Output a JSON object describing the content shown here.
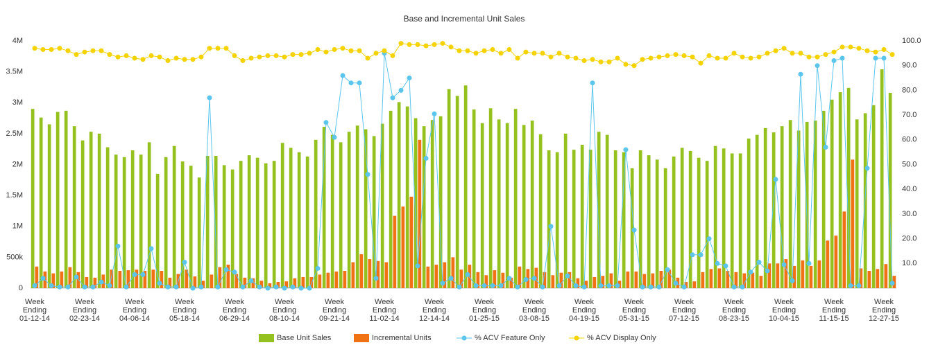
{
  "chart_data": {
    "type": "bar",
    "title": "Base and Incremental Unit Sales",
    "categories": [
      "Week Ending 01-12-14",
      null,
      null,
      null,
      null,
      null,
      "Week Ending 02-23-14",
      null,
      null,
      null,
      null,
      null,
      "Week Ending 04-06-14",
      null,
      null,
      null,
      null,
      null,
      "Week Ending 05-18-14",
      null,
      null,
      null,
      null,
      null,
      "Week Ending 06-29-14",
      null,
      null,
      null,
      null,
      null,
      "Week Ending 08-10-14",
      null,
      null,
      null,
      null,
      null,
      "Week Ending 09-21-14",
      null,
      null,
      null,
      null,
      null,
      "Week Ending 11-02-14",
      null,
      null,
      null,
      null,
      null,
      "Week Ending 12-14-14",
      null,
      null,
      null,
      null,
      null,
      "Week Ending 01-25-15",
      null,
      null,
      null,
      null,
      null,
      "Week Ending 03-08-15",
      null,
      null,
      null,
      null,
      null,
      "Week Ending 04-19-15",
      null,
      null,
      null,
      null,
      null,
      "Week Ending 05-31-15",
      null,
      null,
      null,
      null,
      null,
      "Week Ending 07-12-15",
      null,
      null,
      null,
      null,
      null,
      "Week Ending 08-23-15",
      null,
      null,
      null,
      null,
      null,
      "Week Ending 10-04-15",
      null,
      null,
      null,
      null,
      null,
      "Week Ending 11-15-15",
      null,
      null,
      null,
      null,
      null,
      "Week Ending 12-27-15",
      null
    ],
    "series": [
      {
        "name": "Base Unit Sales",
        "type": "bar",
        "color": "#95c11f",
        "values": [
          2900000,
          2760000,
          2650000,
          2850000,
          2870000,
          2620000,
          2390000,
          2530000,
          2500000,
          2280000,
          2160000,
          2120000,
          2230000,
          2160000,
          2360000,
          1850000,
          2120000,
          2300000,
          2050000,
          1980000,
          1790000,
          2140000,
          2140000,
          1990000,
          1920000,
          2060000,
          2150000,
          2110000,
          2020000,
          2060000,
          2350000,
          2270000,
          2200000,
          2130000,
          2400000,
          2610000,
          2480000,
          2360000,
          2530000,
          2630000,
          2570000,
          2460000,
          2660000,
          2870000,
          3010000,
          2940000,
          2750000,
          2620000,
          2720000,
          2780000,
          3220000,
          3110000,
          3280000,
          2890000,
          2670000,
          2910000,
          2730000,
          2670000,
          2900000,
          2640000,
          2710000,
          2490000,
          2230000,
          2200000,
          2500000,
          2240000,
          2320000,
          2240000,
          2530000,
          2480000,
          2230000,
          2200000,
          1940000,
          2230000,
          2150000,
          2080000,
          1940000,
          2130000,
          2270000,
          2220000,
          2110000,
          2060000,
          2300000,
          2260000,
          2180000,
          2180000,
          2420000,
          2480000,
          2590000,
          2520000,
          2620000,
          2720000,
          2550000,
          2690000,
          2710000,
          2870000,
          3050000,
          3170000,
          3240000,
          2730000,
          2830000,
          2960000,
          3540000,
          3160000
        ]
      },
      {
        "name": "Incremental Units",
        "type": "bar",
        "color": "#f07214",
        "values": [
          350000,
          270000,
          240000,
          270000,
          340000,
          260000,
          180000,
          170000,
          220000,
          300000,
          280000,
          290000,
          300000,
          280000,
          300000,
          280000,
          170000,
          230000,
          300000,
          190000,
          120000,
          220000,
          340000,
          380000,
          230000,
          170000,
          160000,
          120000,
          80000,
          100000,
          110000,
          160000,
          180000,
          180000,
          220000,
          250000,
          270000,
          280000,
          420000,
          550000,
          470000,
          440000,
          420000,
          1170000,
          1320000,
          1480000,
          2400000,
          350000,
          380000,
          420000,
          500000,
          300000,
          380000,
          260000,
          210000,
          290000,
          250000,
          170000,
          350000,
          310000,
          330000,
          260000,
          210000,
          250000,
          260000,
          160000,
          120000,
          180000,
          200000,
          240000,
          120000,
          270000,
          270000,
          230000,
          240000,
          280000,
          300000,
          170000,
          100000,
          110000,
          260000,
          310000,
          320000,
          280000,
          260000,
          240000,
          250000,
          200000,
          400000,
          400000,
          470000,
          360000,
          450000,
          360000,
          450000,
          770000,
          850000,
          1240000,
          2080000,
          320000,
          280000,
          310000,
          390000,
          200000
        ]
      },
      {
        "name": "% ACV Feature Only",
        "type": "line",
        "axis": "y2",
        "color": "#5bc5ec",
        "values": [
          1,
          4,
          1,
          0.5,
          0.5,
          4.5,
          0.5,
          0.5,
          2.5,
          1,
          17,
          0.5,
          5.5,
          5.5,
          16,
          2,
          0.5,
          0.5,
          10.5,
          0,
          0.5,
          77,
          0.5,
          7.5,
          6.5,
          0.5,
          3,
          0.5,
          0,
          0.5,
          0,
          0.5,
          0,
          0,
          8,
          67,
          61,
          86,
          83,
          83,
          46,
          4,
          95,
          77,
          80,
          85,
          9,
          52.5,
          70.5,
          2,
          4,
          0.5,
          5.5,
          1,
          1,
          1,
          1,
          4,
          0.5,
          3.5,
          4,
          0.5,
          25,
          1,
          5,
          1,
          0.5,
          83,
          1,
          1,
          1,
          56,
          23.5,
          0.5,
          0.5,
          0.5,
          7.5,
          2,
          0.5,
          13.5,
          13.5,
          20,
          10,
          9,
          0.5,
          0.5,
          6.5,
          10.5,
          7,
          44,
          9.5,
          3,
          86.5,
          10,
          90,
          57,
          92,
          93,
          1,
          1,
          48.5,
          93,
          93,
          2
        ]
      },
      {
        "name": "% ACV Display Only",
        "type": "line",
        "axis": "y2",
        "color": "#f5d300",
        "values": [
          97,
          96.5,
          96.5,
          97,
          96,
          94.5,
          95.5,
          96,
          96,
          94.5,
          93.5,
          94,
          93,
          92.5,
          94,
          93.5,
          92,
          93,
          92.5,
          92.5,
          93.5,
          97,
          97,
          97,
          94,
          92,
          93,
          93.5,
          94,
          94,
          93.5,
          94.5,
          94.5,
          95,
          96.5,
          95.5,
          96.5,
          97,
          96,
          96,
          93,
          95,
          96,
          94,
          99,
          98.5,
          98.5,
          98,
          98.5,
          99,
          97.5,
          96,
          96,
          95,
          96,
          96.5,
          95,
          96.5,
          93,
          95.5,
          95,
          95,
          93.5,
          95,
          93.5,
          93,
          92,
          92.5,
          91.5,
          91.5,
          93,
          90.5,
          90,
          92.5,
          93,
          93.5,
          94,
          94.5,
          94,
          93.5,
          91,
          94,
          93,
          93,
          95,
          93.5,
          93,
          93.5,
          95,
          96,
          97,
          95,
          95,
          93.5,
          93.5,
          94.5,
          95.5,
          97.5,
          97.5,
          97,
          96,
          95.5,
          96.5,
          94.5
        ]
      }
    ],
    "ylim": [
      0,
      4000000
    ],
    "yticks": [
      0,
      {
        "value": 500000,
        "label": "500k"
      },
      {
        "value": 1000000,
        "label": "1M"
      },
      {
        "value": 1500000,
        "label": "1.5M"
      },
      {
        "value": 2000000,
        "label": "2M"
      },
      {
        "value": 2500000,
        "label": "2.5M"
      },
      {
        "value": 3000000,
        "label": "3M"
      },
      {
        "value": 3500000,
        "label": "3.5M"
      },
      {
        "value": 4000000,
        "label": "4M"
      }
    ],
    "y2lim": [
      0,
      100
    ],
    "y2ticks": [
      {
        "value": 10,
        "label": "10.0"
      },
      {
        "value": 20,
        "label": "20.0"
      },
      {
        "value": 30,
        "label": "30.0"
      },
      {
        "value": 40,
        "label": "40.0"
      },
      {
        "value": 50,
        "label": "50.0"
      },
      {
        "value": 60,
        "label": "60.0"
      },
      {
        "value": 70,
        "label": "70.0"
      },
      {
        "value": 80,
        "label": "80.0"
      },
      {
        "value": 90,
        "label": "90.0"
      },
      {
        "value": 100,
        "label": "100.0"
      }
    ],
    "grid": false,
    "legend": "bottom"
  }
}
